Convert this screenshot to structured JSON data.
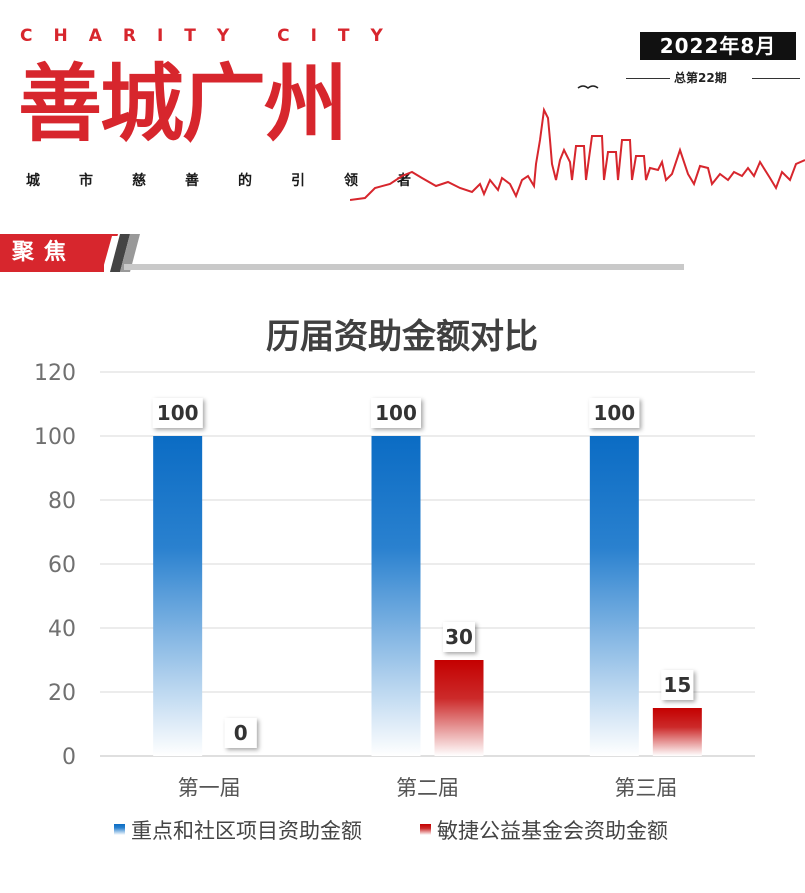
{
  "header": {
    "en_title": "CHARITY CITY",
    "cn_title": "善城广州",
    "tagline": [
      "城",
      "市",
      "慈",
      "善",
      "的",
      "引",
      "领",
      "者"
    ],
    "date": "2022年8月",
    "issue": "总第22期"
  },
  "section": {
    "label": "聚焦"
  },
  "chart_data": {
    "type": "bar",
    "title": "历届资助金额对比",
    "categories": [
      "第一届",
      "第二届",
      "第三届"
    ],
    "series": [
      {
        "name": "重点和社区项目资助金额",
        "values": [
          100,
          100,
          100
        ],
        "color": "#0b6cc4"
      },
      {
        "name": "敏捷公益基金会资助金额",
        "values": [
          0,
          30,
          15
        ],
        "color": "#c40000"
      }
    ],
    "ylim": [
      0,
      120
    ],
    "yticks": [
      0,
      20,
      40,
      60,
      80,
      100,
      120
    ],
    "grid": true,
    "legend": "bottom",
    "data_labels": true
  }
}
